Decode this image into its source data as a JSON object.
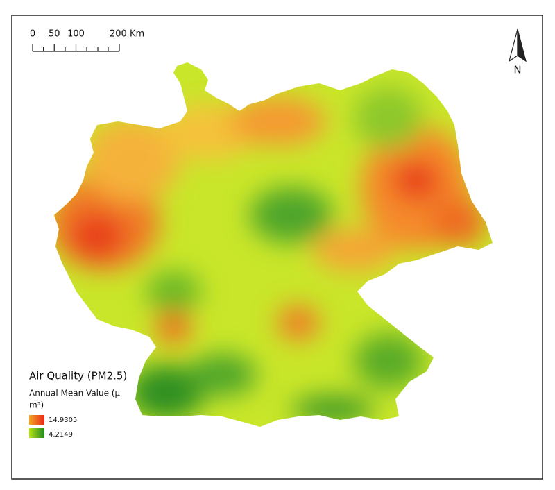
{
  "map": {
    "legend": {
      "title": "Air Quality (PM2.5)",
      "subtitle": [
        "Annual Mean Value (µ",
        "m³)"
      ],
      "high": "14.9305",
      "low": "4.2149"
    },
    "scale_bar": {
      "ticks": [
        0,
        50,
        100,
        {
          "value": 200,
          "label": "200 Km"
        }
      ]
    },
    "north_arrow": "N"
  }
}
